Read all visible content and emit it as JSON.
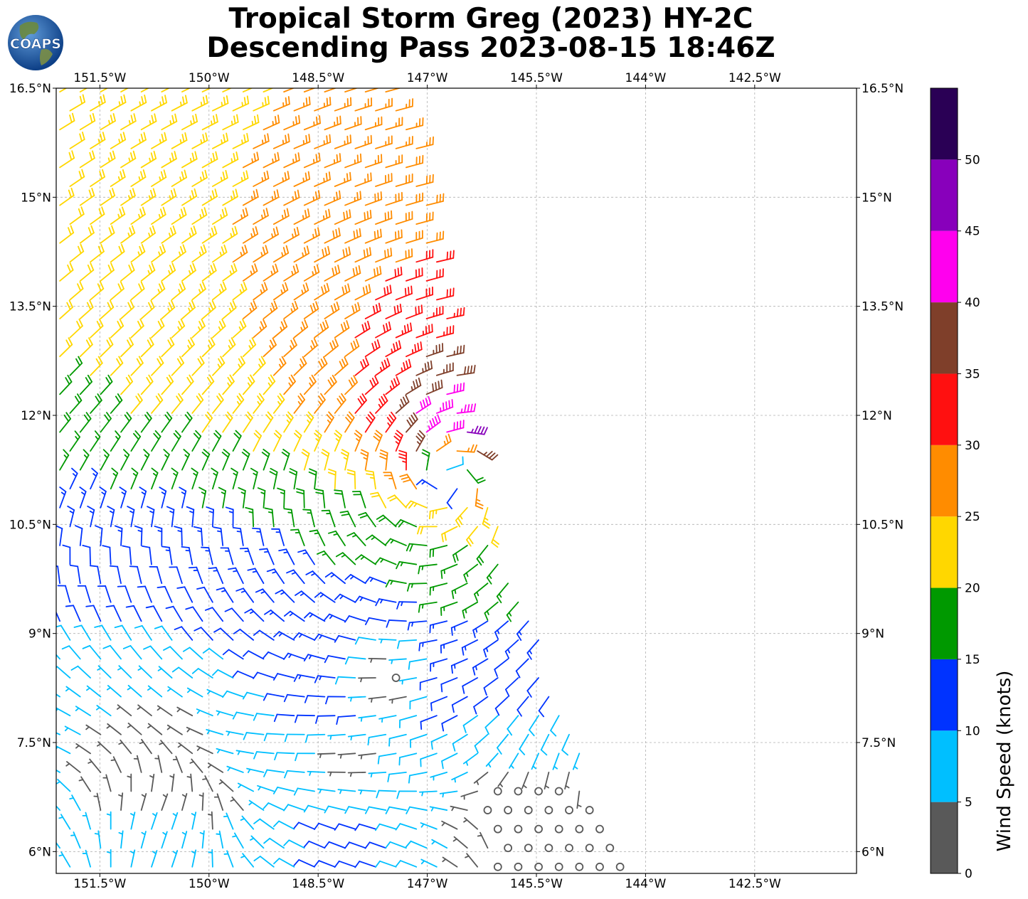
{
  "title": {
    "line1": "Tropical Storm Greg (2023) HY-2C",
    "line2": "Descending Pass 2023-08-15 18:46Z"
  },
  "logo": {
    "text": "COAPS"
  },
  "map": {
    "lon_ticks": [
      "151.5°W",
      "150°W",
      "148.5°W",
      "147°W",
      "145.5°W",
      "144°W",
      "142.5°W"
    ],
    "lat_ticks": [
      "16.5°N",
      "15°N",
      "13.5°N",
      "12°N",
      "10.5°N",
      "9°N",
      "7.5°N",
      "6°N"
    ],
    "lon_values": [
      -151.5,
      -150,
      -148.5,
      -147,
      -145.5,
      -144,
      -142.5
    ],
    "lat_values": [
      16.5,
      15,
      13.5,
      12,
      10.5,
      9,
      7.5,
      6
    ],
    "extent": {
      "lon_min": -152.1,
      "lon_max": -141.1,
      "lat_min": 5.7,
      "lat_max": 16.5
    },
    "storm_center": {
      "lon": -146.7,
      "lat": 11.3
    },
    "swath_east_edge": [
      [
        -147.3,
        16.5
      ],
      [
        -146.9,
        14.5
      ],
      [
        -146.4,
        12.0
      ],
      [
        -146.0,
        10.5
      ],
      [
        -145.3,
        8.5
      ],
      [
        -144.3,
        5.7
      ]
    ],
    "gridlines": true
  },
  "colorbar": {
    "label": "Wind Speed (knots)",
    "ticks": [
      "0",
      "5",
      "10",
      "15",
      "20",
      "25",
      "30",
      "35",
      "40",
      "45",
      "50"
    ],
    "bins": [
      {
        "min": 0,
        "max": 5,
        "color": "#595959"
      },
      {
        "min": 5,
        "max": 10,
        "color": "#00bfff"
      },
      {
        "min": 10,
        "max": 15,
        "color": "#0033ff"
      },
      {
        "min": 15,
        "max": 20,
        "color": "#009900"
      },
      {
        "min": 20,
        "max": 25,
        "color": "#ffd700"
      },
      {
        "min": 25,
        "max": 30,
        "color": "#ff8c00"
      },
      {
        "min": 30,
        "max": 35,
        "color": "#ff1010"
      },
      {
        "min": 35,
        "max": 40,
        "color": "#7f3f2a"
      },
      {
        "min": 40,
        "max": 45,
        "color": "#ff00ee"
      },
      {
        "min": 45,
        "max": 50,
        "color": "#8800bb"
      },
      {
        "min": 50,
        "max": 55,
        "color": "#2a0055"
      }
    ]
  }
}
